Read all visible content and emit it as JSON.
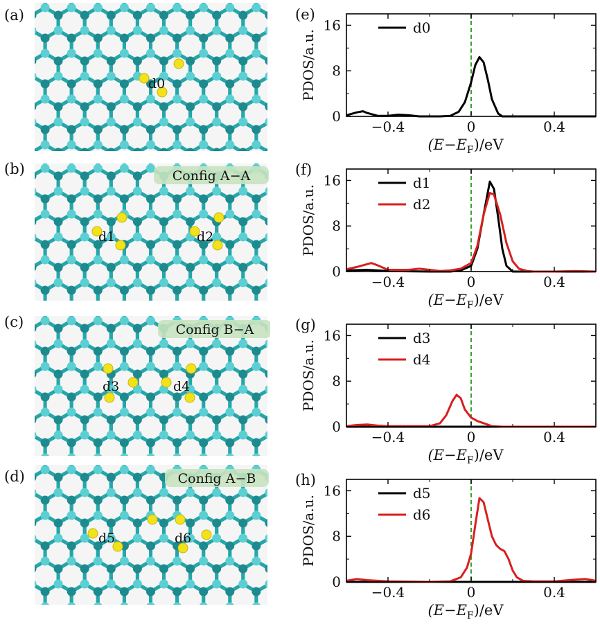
{
  "panels": {
    "lattice": [
      {
        "label": "(a)",
        "config": "",
        "atoms": [
          "d0"
        ]
      },
      {
        "label": "(b)",
        "config": "Config A−A",
        "atoms": [
          "d1",
          "d2"
        ]
      },
      {
        "label": "(c)",
        "config": "Config B−A",
        "atoms": [
          "d3",
          "d4"
        ]
      },
      {
        "label": "(d)",
        "config": "Config A−B",
        "atoms": [
          "d5",
          "d6"
        ]
      }
    ]
  },
  "colors": {
    "carbon_dark": "#1d8a8e",
    "carbon_light": "#5ccfd2",
    "bond": "#27a6aa",
    "dopant": "#f2e21c",
    "config_bg": "#c8e3c0",
    "fermi_line": "#3aa02f",
    "series_black": "#000000",
    "series_red": "#d81f1f"
  },
  "chart_data": [
    {
      "type": "line",
      "panel_label": "(e)",
      "ylabel": "PDOS/a.u.",
      "xlabel": "(E−E_F)/eV",
      "xlim": [
        -0.6,
        0.6
      ],
      "ylim": [
        0,
        18
      ],
      "xticks": [
        -0.4,
        0,
        0.4
      ],
      "xtick_labels": [
        "−0.4",
        "0",
        "0.4"
      ],
      "yticks": [
        0,
        8,
        16
      ],
      "ytick_labels": [
        "0",
        "8",
        "16"
      ],
      "fermi_x": 0,
      "series": [
        {
          "name": "d0",
          "color": "#000000",
          "x": [
            -0.6,
            -0.55,
            -0.52,
            -0.5,
            -0.45,
            -0.4,
            -0.35,
            -0.3,
            -0.25,
            -0.2,
            -0.15,
            -0.1,
            -0.06,
            -0.03,
            0,
            0.02,
            0.04,
            0.06,
            0.08,
            0.1,
            0.13,
            0.15,
            0.2,
            0.3,
            0.4,
            0.5,
            0.6
          ],
          "y": [
            0.2,
            0.7,
            0.9,
            0.6,
            0.1,
            0.1,
            0.3,
            0.2,
            0.0,
            0.0,
            0.0,
            0.1,
            0.8,
            2.5,
            6.0,
            9.0,
            10.4,
            9.5,
            6.5,
            3.0,
            0.5,
            0.0,
            0.0,
            0.0,
            0.0,
            0.0,
            0.0
          ]
        }
      ]
    },
    {
      "type": "line",
      "panel_label": "(f)",
      "ylabel": "PDOS/a.u.",
      "xlabel": "(E−E_F)/eV",
      "xlim": [
        -0.6,
        0.6
      ],
      "ylim": [
        0,
        18
      ],
      "xticks": [
        -0.4,
        0,
        0.4
      ],
      "xtick_labels": [
        "−0.4",
        "0",
        "0.4"
      ],
      "yticks": [
        0,
        8,
        16
      ],
      "ytick_labels": [
        "0",
        "8",
        "16"
      ],
      "fermi_x": 0,
      "series": [
        {
          "name": "d1",
          "color": "#000000",
          "x": [
            -0.6,
            -0.5,
            -0.4,
            -0.2,
            -0.1,
            -0.05,
            0,
            0.03,
            0.06,
            0.09,
            0.11,
            0.13,
            0.15,
            0.17,
            0.2,
            0.3,
            0.6
          ],
          "y": [
            0.2,
            0.3,
            0.1,
            0.0,
            0.0,
            0.2,
            1.0,
            4.0,
            10.0,
            15.8,
            14.5,
            9.5,
            4.0,
            1.0,
            0.0,
            0.0,
            0.0
          ]
        },
        {
          "name": "d2",
          "color": "#d81f1f",
          "x": [
            -0.6,
            -0.55,
            -0.5,
            -0.48,
            -0.45,
            -0.4,
            -0.3,
            -0.25,
            -0.2,
            -0.15,
            -0.1,
            -0.05,
            0,
            0.03,
            0.06,
            0.09,
            0.11,
            0.14,
            0.17,
            0.2,
            0.23,
            0.27,
            0.3,
            0.4,
            0.5,
            0.6
          ],
          "y": [
            0.4,
            0.8,
            1.3,
            1.5,
            1.1,
            0.3,
            0.3,
            0.5,
            0.3,
            0.1,
            0.2,
            0.5,
            1.5,
            4.5,
            10.0,
            13.8,
            13.5,
            10.0,
            5.0,
            1.8,
            0.5,
            0.1,
            0.0,
            0.0,
            0.1,
            0.0
          ]
        }
      ]
    },
    {
      "type": "line",
      "panel_label": "(g)",
      "ylabel": "PDOS/a.u.",
      "xlabel": "(E−E_F)/eV",
      "xlim": [
        -0.6,
        0.6
      ],
      "ylim": [
        0,
        18
      ],
      "xticks": [
        -0.4,
        0,
        0.4
      ],
      "xtick_labels": [
        "−0.4",
        "0",
        "0.4"
      ],
      "yticks": [
        0,
        8,
        16
      ],
      "ytick_labels": [
        "0",
        "8",
        "16"
      ],
      "fermi_x": 0,
      "series": [
        {
          "name": "d3",
          "color": "#000000",
          "x": [
            -0.6,
            0.6
          ],
          "y": [
            0,
            0
          ]
        },
        {
          "name": "d4",
          "color": "#d81f1f",
          "x": [
            -0.6,
            -0.55,
            -0.5,
            -0.45,
            -0.4,
            -0.3,
            -0.2,
            -0.15,
            -0.12,
            -0.09,
            -0.07,
            -0.05,
            -0.03,
            0,
            0.03,
            0.07,
            0.1,
            0.15,
            0.3,
            0.6
          ],
          "y": [
            0.1,
            0.3,
            0.4,
            0.2,
            0.1,
            0.1,
            0.1,
            0.6,
            2.0,
            4.5,
            5.6,
            5.0,
            3.0,
            1.6,
            1.0,
            0.5,
            0.1,
            0.0,
            0.0,
            0.0
          ]
        }
      ]
    },
    {
      "type": "line",
      "panel_label": "(h)",
      "ylabel": "PDOS/a.u.",
      "xlabel": "(E−E_F)/eV",
      "xlim": [
        -0.6,
        0.6
      ],
      "ylim": [
        0,
        18
      ],
      "xticks": [
        -0.4,
        0,
        0.4
      ],
      "xtick_labels": [
        "−0.4",
        "0",
        "0.4"
      ],
      "yticks": [
        0,
        8,
        16
      ],
      "ytick_labels": [
        "0",
        "8",
        "16"
      ],
      "fermi_x": 0,
      "series": [
        {
          "name": "d5",
          "color": "#000000",
          "x": [
            -0.6,
            0.6
          ],
          "y": [
            0,
            0
          ]
        },
        {
          "name": "d6",
          "color": "#d81f1f",
          "x": [
            -0.6,
            -0.55,
            -0.5,
            -0.4,
            -0.2,
            -0.1,
            -0.05,
            -0.02,
            0,
            0.02,
            0.04,
            0.06,
            0.08,
            0.1,
            0.12,
            0.14,
            0.16,
            0.18,
            0.2,
            0.22,
            0.25,
            0.3,
            0.4,
            0.5,
            0.55,
            0.6
          ],
          "y": [
            0.2,
            0.5,
            0.3,
            0.1,
            0.0,
            0.1,
            0.8,
            2.5,
            5.0,
            10.0,
            14.7,
            14.0,
            11.0,
            8.0,
            6.5,
            5.8,
            5.4,
            4.0,
            2.0,
            0.8,
            0.2,
            0.1,
            0.1,
            0.4,
            0.5,
            0.2
          ]
        }
      ]
    }
  ]
}
